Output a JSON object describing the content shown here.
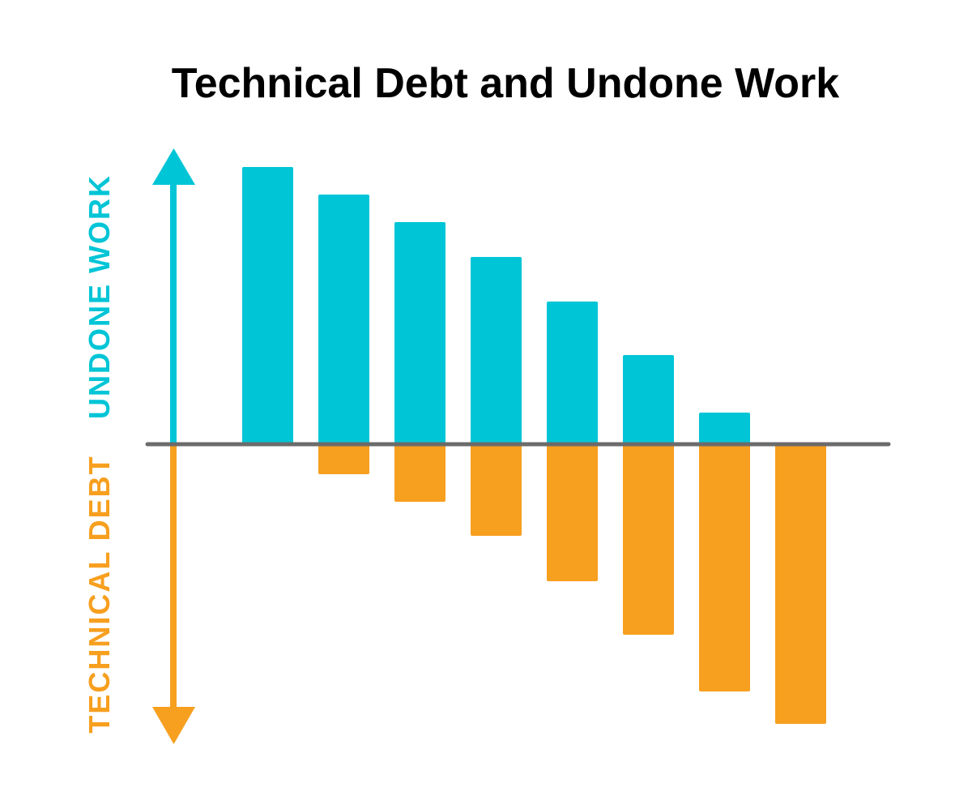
{
  "chart_data": {
    "type": "diverging-bar",
    "title": "Technical Debt and Undone Work",
    "categories": [
      null,
      null,
      null,
      null,
      null,
      null,
      null,
      null
    ],
    "series": [
      {
        "name": "UNDONE WORK",
        "color": "#00c5d6",
        "values": [
          342,
          308,
          274,
          231,
          176,
          110,
          39,
          0
        ]
      },
      {
        "name": "TECHNICAL DEBT",
        "color": "#f79f1f",
        "values": [
          0,
          -37,
          -71,
          -113,
          -169,
          -235,
          -305,
          -345
        ]
      }
    ],
    "ylim": [
      -370,
      363
    ]
  }
}
